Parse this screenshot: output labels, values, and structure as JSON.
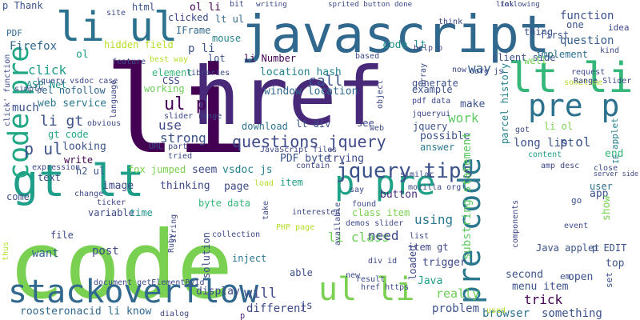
{
  "chart_data": {
    "type": "word-cloud",
    "palette": [
      "#440154",
      "#482878",
      "#3e4989",
      "#31688e",
      "#26828e",
      "#1f9e89",
      "#35b779",
      "#6ece58",
      "#b5de2b",
      "#fde725"
    ],
    "words": [
      {
        "text": "p",
        "color": "#482878"
      },
      {
        "text": "code",
        "color": "#7ad151"
      },
      {
        "text": "li",
        "color": "#440154"
      },
      {
        "text": "href",
        "color": "#482878"
      },
      {
        "text": "javascript",
        "color": "#31688e"
      },
      {
        "text": "li ul",
        "color": "#2c728e"
      },
      {
        "text": "lt li",
        "color": "#35b779"
      },
      {
        "text": "pre p",
        "color": "#2c728e"
      },
      {
        "text": "gt lt",
        "color": "#1f9e89"
      },
      {
        "text": "code pre",
        "color": "#22a884"
      },
      {
        "text": "stackoverflow",
        "color": "#31688e"
      },
      {
        "text": "p pre",
        "color": "#1fa187"
      },
      {
        "text": "ul li",
        "color": "#7ad151"
      },
      {
        "text": "pre code",
        "color": "#2a788e"
      },
      {
        "text": "jquery tips",
        "color": "#3b528b"
      },
      {
        "text": "questions jquery",
        "color": "#3e4a89"
      },
      {
        "text": "p ul",
        "color": "#3b528b"
      },
      {
        "text": "ul p",
        "color": "#440154"
      },
      {
        "text": "function",
        "color": "#3b528b"
      },
      {
        "text": "question",
        "color": "#355f8d"
      },
      {
        "text": "work",
        "color": "#5ec962"
      },
      {
        "text": "li gt",
        "color": "#3b528b"
      },
      {
        "text": "gt code",
        "color": "#22a884"
      },
      {
        "text": "li class",
        "color": "#6ece58"
      },
      {
        "text": "p ol",
        "color": "#3b528b"
      },
      {
        "text": "click",
        "color": "#1f9e89"
      },
      {
        "text": "call",
        "color": "#3b528b"
      },
      {
        "text": "use",
        "color": "#3e4989"
      },
      {
        "text": "strong",
        "color": "#3b528b"
      },
      {
        "text": "way",
        "color": "#355f8d"
      },
      {
        "text": "using",
        "color": "#2a788e"
      },
      {
        "text": "code lt",
        "color": "#21918c"
      },
      {
        "text": "location hash",
        "color": "#26828e"
      },
      {
        "text": "window location",
        "color": "#31688e"
      },
      {
        "text": "li Number",
        "color": "#440154"
      },
      {
        "text": "lt div",
        "color": "#3b528b"
      },
      {
        "text": "download",
        "color": "#2c728e"
      },
      {
        "text": "possible",
        "color": "#3b528b"
      },
      {
        "text": "answer",
        "color": "#2a788e"
      },
      {
        "text": "long list",
        "color": "#3b528b"
      },
      {
        "text": "PDF byte",
        "color": "#3b528b"
      },
      {
        "text": "trying",
        "color": "#3e4989"
      },
      {
        "text": "seem",
        "color": "#3e4989"
      },
      {
        "text": "vsdoc js",
        "color": "#26828e"
      },
      {
        "text": "fox jumped",
        "color": "#7ad151"
      },
      {
        "text": "image",
        "color": "#3e4989"
      },
      {
        "text": "page",
        "color": "#3e4989"
      },
      {
        "text": "button",
        "color": "#482878"
      },
      {
        "text": "byte data",
        "color": "#35b779"
      },
      {
        "text": "thinking",
        "color": "#3e4989"
      },
      {
        "text": "variable",
        "color": "#3e4989"
      },
      {
        "text": "time",
        "color": "#21918c"
      },
      {
        "text": "item",
        "color": "#1f9e89"
      },
      {
        "text": "class item",
        "color": "#7ad151"
      },
      {
        "text": "item gt",
        "color": "#3e4989"
      },
      {
        "text": "need",
        "color": "#3e4989"
      },
      {
        "text": "trigger",
        "color": "#3e4989"
      },
      {
        "text": "substring statement",
        "color": "#5ec962"
      },
      {
        "text": "solution",
        "color": "#3e4989"
      },
      {
        "text": "inject",
        "color": "#2a788e"
      },
      {
        "text": "post",
        "color": "#3e4989"
      },
      {
        "text": "want",
        "color": "#31688e"
      },
      {
        "text": "file",
        "color": "#3e4989"
      },
      {
        "text": "able",
        "color": "#3e4989"
      },
      {
        "text": "Java",
        "color": "#1f9e89"
      },
      {
        "text": "loaded",
        "color": "#3e4989"
      },
      {
        "text": "really",
        "color": "#6ece58"
      },
      {
        "text": "problem",
        "color": "#3b528b"
      },
      {
        "text": "trick",
        "color": "#440154"
      },
      {
        "text": "menu item",
        "color": "#3b528b"
      },
      {
        "text": "second",
        "color": "#3b528b"
      },
      {
        "text": "open",
        "color": "#3b528b"
      },
      {
        "text": "browser",
        "color": "#2c728e"
      },
      {
        "text": "something",
        "color": "#3b528b"
      },
      {
        "text": "Java applet",
        "color": "#3b528b"
      },
      {
        "text": "p EDIT",
        "color": "#3b528b"
      },
      {
        "text": "top",
        "color": "#3b528b"
      },
      {
        "text": "set",
        "color": "#3b528b"
      },
      {
        "text": "em",
        "color": "#3b528b"
      },
      {
        "text": "roosteronacid li know",
        "color": "#31688e"
      },
      {
        "text": "different",
        "color": "#3e4989"
      },
      {
        "text": "display",
        "color": "#3e4989"
      },
      {
        "text": "will",
        "color": "#3e4989"
      },
      {
        "text": "js",
        "color": "#3e4989"
      },
      {
        "text": "h2 ul",
        "color": "#3b528b"
      },
      {
        "text": "write",
        "color": "#440154"
      },
      {
        "text": "looking",
        "color": "#3b528b"
      },
      {
        "text": "web service",
        "color": "#2a788e"
      },
      {
        "text": "rel nofollow",
        "color": "#31688e"
      },
      {
        "text": "ASP Net",
        "color": "#21918c"
      },
      {
        "text": "Firefox",
        "color": "#31688e"
      },
      {
        "text": "much",
        "color": "#3b528b"
      },
      {
        "text": "text",
        "color": "#3e4989"
      },
      {
        "text": "come",
        "color": "#3b528b"
      },
      {
        "text": "ol li",
        "color": "#440154"
      },
      {
        "text": "lt ul",
        "color": "#31688e"
      },
      {
        "text": "html",
        "color": "#3b528b"
      },
      {
        "text": "clicked",
        "color": "#3e4989"
      },
      {
        "text": "IFrame",
        "color": "#31688e"
      },
      {
        "text": "mouse",
        "color": "#26828e"
      },
      {
        "text": "hidden field",
        "color": "#b5de2b"
      },
      {
        "text": "p li",
        "color": "#3b528b"
      },
      {
        "text": "element",
        "color": "#35b779"
      },
      {
        "text": "CSS",
        "color": "#3e4989"
      },
      {
        "text": "working",
        "color": "#6ece58"
      },
      {
        "text": "lot",
        "color": "#3b528b"
      },
      {
        "text": "client side",
        "color": "#3b528b"
      },
      {
        "text": "example",
        "color": "#3b528b"
      },
      {
        "text": "generate",
        "color": "#3b528b"
      },
      {
        "text": "make",
        "color": "#3b528b"
      },
      {
        "text": "see",
        "color": "#3e4989"
      },
      {
        "text": "jquery",
        "color": "#3b528b"
      },
      {
        "text": "first",
        "color": "#3b528b"
      },
      {
        "text": "thing",
        "color": "#3b528b"
      },
      {
        "text": "one",
        "color": "#3b528b"
      },
      {
        "text": "idea",
        "color": "#3e4989"
      },
      {
        "text": "implement",
        "color": "#2c728e"
      },
      {
        "text": "well",
        "color": "#6ece58"
      },
      {
        "text": "li ol",
        "color": "#7ad151"
      },
      {
        "text": "end",
        "color": "#35b779"
      },
      {
        "text": "user",
        "color": "#2c728e"
      },
      {
        "text": "app",
        "color": "#3b528b"
      },
      {
        "text": "show",
        "color": "#7ad151"
      },
      {
        "text": "go",
        "color": "#3b528b"
      },
      {
        "text": "ol",
        "color": "#1f9e89"
      },
      {
        "text": "p Thank",
        "color": "#3b528b"
      },
      {
        "text": "PDF",
        "color": "#31688e"
      },
      {
        "text": "IE",
        "color": "#26828e"
      },
      {
        "text": "applet",
        "color": "#26828e"
      },
      {
        "text": "parcel history",
        "color": "#26828e"
      },
      {
        "text": "URL part",
        "color": "#3e4989"
      },
      {
        "text": "slider range",
        "color": "#3e4989"
      },
      {
        "text": "JavaScript files",
        "color": "#3e4989"
      },
      {
        "text": "document getElementById",
        "color": "#3e4989"
      },
      {
        "text": "dialog",
        "color": "#3e4989"
      },
      {
        "text": "collection",
        "color": "#3e4989"
      },
      {
        "text": "interested",
        "color": "#3e4989"
      },
      {
        "text": "mozilla org",
        "color": "#3e4989"
      },
      {
        "text": "similar",
        "color": "#3e4989"
      },
      {
        "text": "found",
        "color": "#3e4989"
      },
      {
        "text": "demos slider",
        "color": "#3e4989"
      },
      {
        "text": "PHP page",
        "color": "#b5de2b"
      },
      {
        "text": "result",
        "color": "#3e4989"
      },
      {
        "text": "href https",
        "color": "#3e4989"
      },
      {
        "text": "div id",
        "color": "#3e4989"
      },
      {
        "text": "new",
        "color": "#3e4989"
      },
      {
        "text": "list",
        "color": "#3e4989"
      },
      {
        "text": "used",
        "color": "#b5de2b"
      },
      {
        "text": "writing",
        "color": "#3e4989"
      },
      {
        "text": "link",
        "color": "#3e4989"
      },
      {
        "text": "following",
        "color": "#3e4989"
      },
      {
        "text": "done",
        "color": "#3e4989"
      },
      {
        "text": "sprited button",
        "color": "#3e4989"
      },
      {
        "text": "site",
        "color": "#3e4989"
      },
      {
        "text": "bit",
        "color": "#3e4989"
      },
      {
        "text": "think",
        "color": "#3e4989"
      },
      {
        "text": "help p",
        "color": "#3e4989"
      },
      {
        "text": "based",
        "color": "#3e4989"
      },
      {
        "text": "array",
        "color": "#3e4989"
      },
      {
        "text": "core js",
        "color": "#3e4989"
      },
      {
        "text": "now",
        "color": "#3e4989"
      },
      {
        "text": "request",
        "color": "#3e4989"
      },
      {
        "text": "sometime",
        "color": "#b5de2b"
      },
      {
        "text": "Range Slider",
        "color": "#3e4989"
      },
      {
        "text": "kind",
        "color": "#3e4989"
      },
      {
        "text": "feature",
        "color": "#3e4989"
      },
      {
        "text": "best way",
        "color": "#b5de2b"
      },
      {
        "text": "libraries",
        "color": "#3e4989"
      },
      {
        "text": "jquery vsdoc case",
        "color": "#3e4989"
      },
      {
        "text": "simply",
        "color": "#3e4989"
      },
      {
        "text": "obvious",
        "color": "#3e4989"
      },
      {
        "text": "language",
        "color": "#3e4989"
      },
      {
        "text": "tried",
        "color": "#3e4989"
      },
      {
        "text": "contain",
        "color": "#3e4989"
      },
      {
        "text": "expression",
        "color": "#3e4989"
      },
      {
        "text": "say",
        "color": "#3e4989"
      },
      {
        "text": "ticker",
        "color": "#3e4989"
      },
      {
        "text": "change",
        "color": "#3e4989"
      },
      {
        "text": "load",
        "color": "#b5de2b"
      },
      {
        "text": "string",
        "color": "#3e4989"
      },
      {
        "text": "take",
        "color": "#3e4989"
      },
      {
        "text": "Ruby",
        "color": "#3e4989"
      },
      {
        "text": "available",
        "color": "#3e4989"
      },
      {
        "text": "components",
        "color": "#3e4989"
      },
      {
        "text": "event",
        "color": "#3e4989"
      },
      {
        "text": "thus",
        "color": "#b5de2b"
      },
      {
        "text": "content",
        "color": "#1f9e89"
      },
      {
        "text": "amp desc",
        "color": "#3e4989"
      },
      {
        "text": "close",
        "color": "#3e4989"
      },
      {
        "text": "server side",
        "color": "#3e4989"
      },
      {
        "text": "got",
        "color": "#3e4989"
      },
      {
        "text": "pdf data",
        "color": "#3e4989"
      },
      {
        "text": "jqueryui",
        "color": "#3e4989"
      },
      {
        "text": "web",
        "color": "#3e4989"
      },
      {
        "text": "object",
        "color": "#3e4989"
      },
      {
        "text": "click' function",
        "color": "#3e4989"
      }
    ]
  }
}
